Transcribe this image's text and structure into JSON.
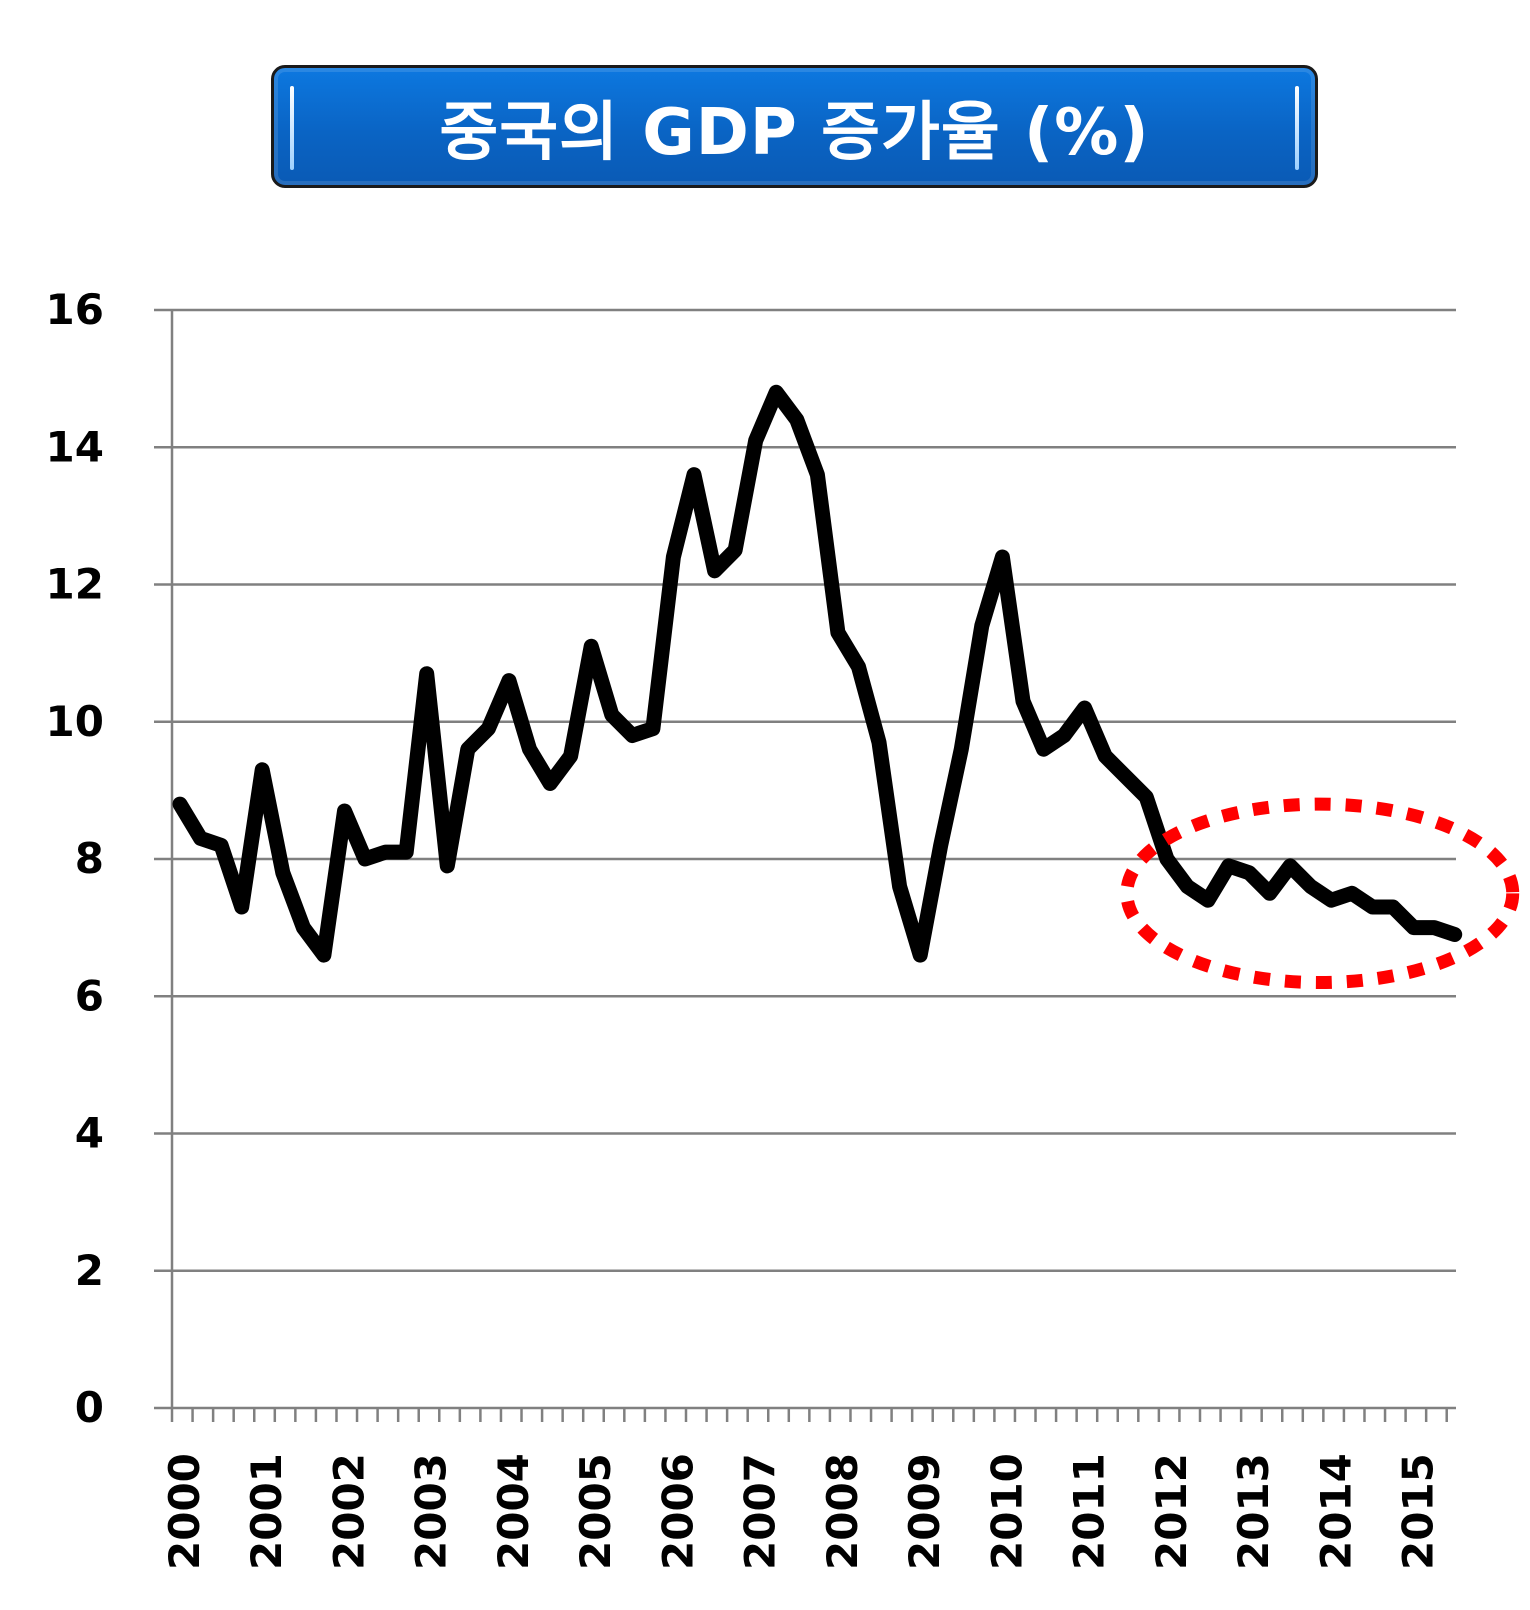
{
  "chart_data": {
    "type": "line",
    "title": "중국의 GDP 증가율 (%)",
    "xlabel": "",
    "ylabel": "",
    "ylim": [
      0,
      16
    ],
    "yticks": [
      "0",
      "2",
      "4",
      "6",
      "8",
      "10",
      "12",
      "14",
      "16"
    ],
    "xticks": [
      "2000",
      "2001",
      "2002",
      "2003",
      "2004",
      "2005",
      "2006",
      "2007",
      "2008",
      "2009",
      "2010",
      "2011",
      "2012",
      "2013",
      "2014",
      "2015"
    ],
    "grid": true,
    "quarters_per_year": 4,
    "series": [
      {
        "values": [
          8.8,
          8.3,
          8.2,
          7.3,
          9.3,
          7.8,
          7.0,
          6.6,
          8.7,
          8.0,
          8.1,
          8.1,
          10.7,
          7.9,
          9.6,
          9.9,
          10.6,
          9.6,
          9.1,
          9.5,
          11.1,
          10.1,
          9.8,
          9.9,
          12.4,
          13.6,
          12.2,
          12.5,
          14.1,
          14.8,
          14.4,
          13.6,
          11.3,
          10.8,
          9.7,
          7.6,
          6.6,
          8.2,
          9.6,
          11.4,
          12.4,
          10.3,
          9.6,
          9.8,
          10.2,
          9.5,
          9.2,
          8.9,
          8.0,
          7.6,
          7.4,
          7.9,
          7.8,
          7.5,
          7.9,
          7.6,
          7.4,
          7.5,
          7.3,
          7.3,
          7.0,
          7.0,
          6.9
        ],
        "color": "#000000"
      }
    ],
    "annotation": {
      "shape": "dotted-ellipse",
      "color": "#ff0000",
      "x_from": "2012 Q1",
      "x_to": "2015 Q3",
      "y_from": 6.2,
      "y_to": 8.8
    },
    "text_color": "#000000",
    "grid_color": "#808080"
  },
  "title_box": {
    "background": "#0a64c4",
    "text_color": "#ffffff"
  }
}
